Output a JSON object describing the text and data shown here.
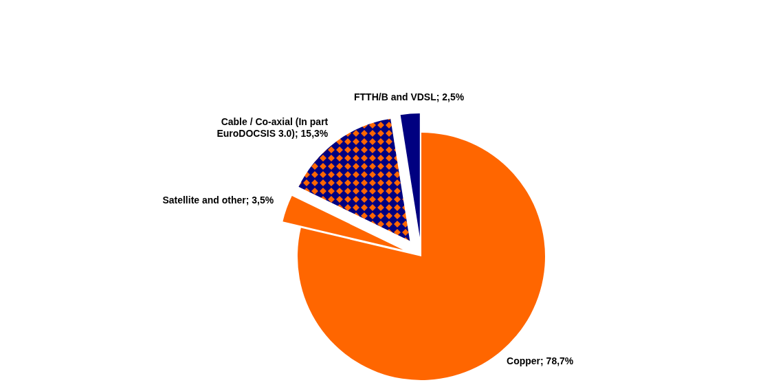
{
  "chart_data": {
    "type": "pie",
    "categories": [
      "Copper",
      "Satellite and other",
      "Cable / Co-axial (In part EuroDOCSIS 3.0)",
      "FTTH/B and VDSL"
    ],
    "values": [
      78.7,
      3.5,
      15.3,
      2.5
    ],
    "colors": [
      "#ff6600",
      "#ff6600",
      "#000080",
      "#000080"
    ],
    "value_labels": [
      "78,7%",
      "3,5%",
      "15,3%",
      "2,5%"
    ]
  }
}
